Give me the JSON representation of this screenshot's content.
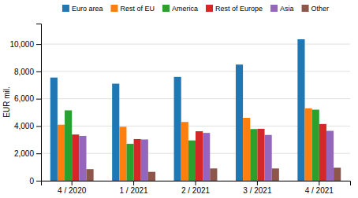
{
  "chart_data": {
    "type": "bar",
    "categories": [
      "4 / 2020",
      "1 / 2021",
      "2 / 2021",
      "3 / 2021",
      "4 / 2021"
    ],
    "series": [
      {
        "name": "Euro area",
        "values": [
          7550,
          7100,
          7600,
          8500,
          10350
        ]
      },
      {
        "name": "Rest of EU",
        "values": [
          4100,
          3950,
          4300,
          4600,
          5300
        ]
      },
      {
        "name": "America",
        "values": [
          5150,
          2700,
          2950,
          3780,
          5200
        ]
      },
      {
        "name": "Rest of Europe",
        "values": [
          3380,
          3050,
          3620,
          3800,
          4150
        ]
      },
      {
        "name": "Asia",
        "values": [
          3280,
          3020,
          3500,
          3350,
          3650
        ]
      },
      {
        "name": "Other",
        "values": [
          850,
          650,
          900,
          900,
          950
        ]
      }
    ],
    "ylabel": "EUR mil.",
    "ylim": [
      0,
      11500
    ],
    "yticks": [
      0,
      {
        "value": 2000,
        "label": "2,000"
      },
      {
        "value": 4000,
        "label": "4,000"
      },
      {
        "value": 6000,
        "label": "6,000"
      },
      {
        "value": 8000,
        "label": "8,000"
      },
      {
        "value": 10000,
        "label": "10,000"
      }
    ],
    "grid": true,
    "legend": "top"
  }
}
